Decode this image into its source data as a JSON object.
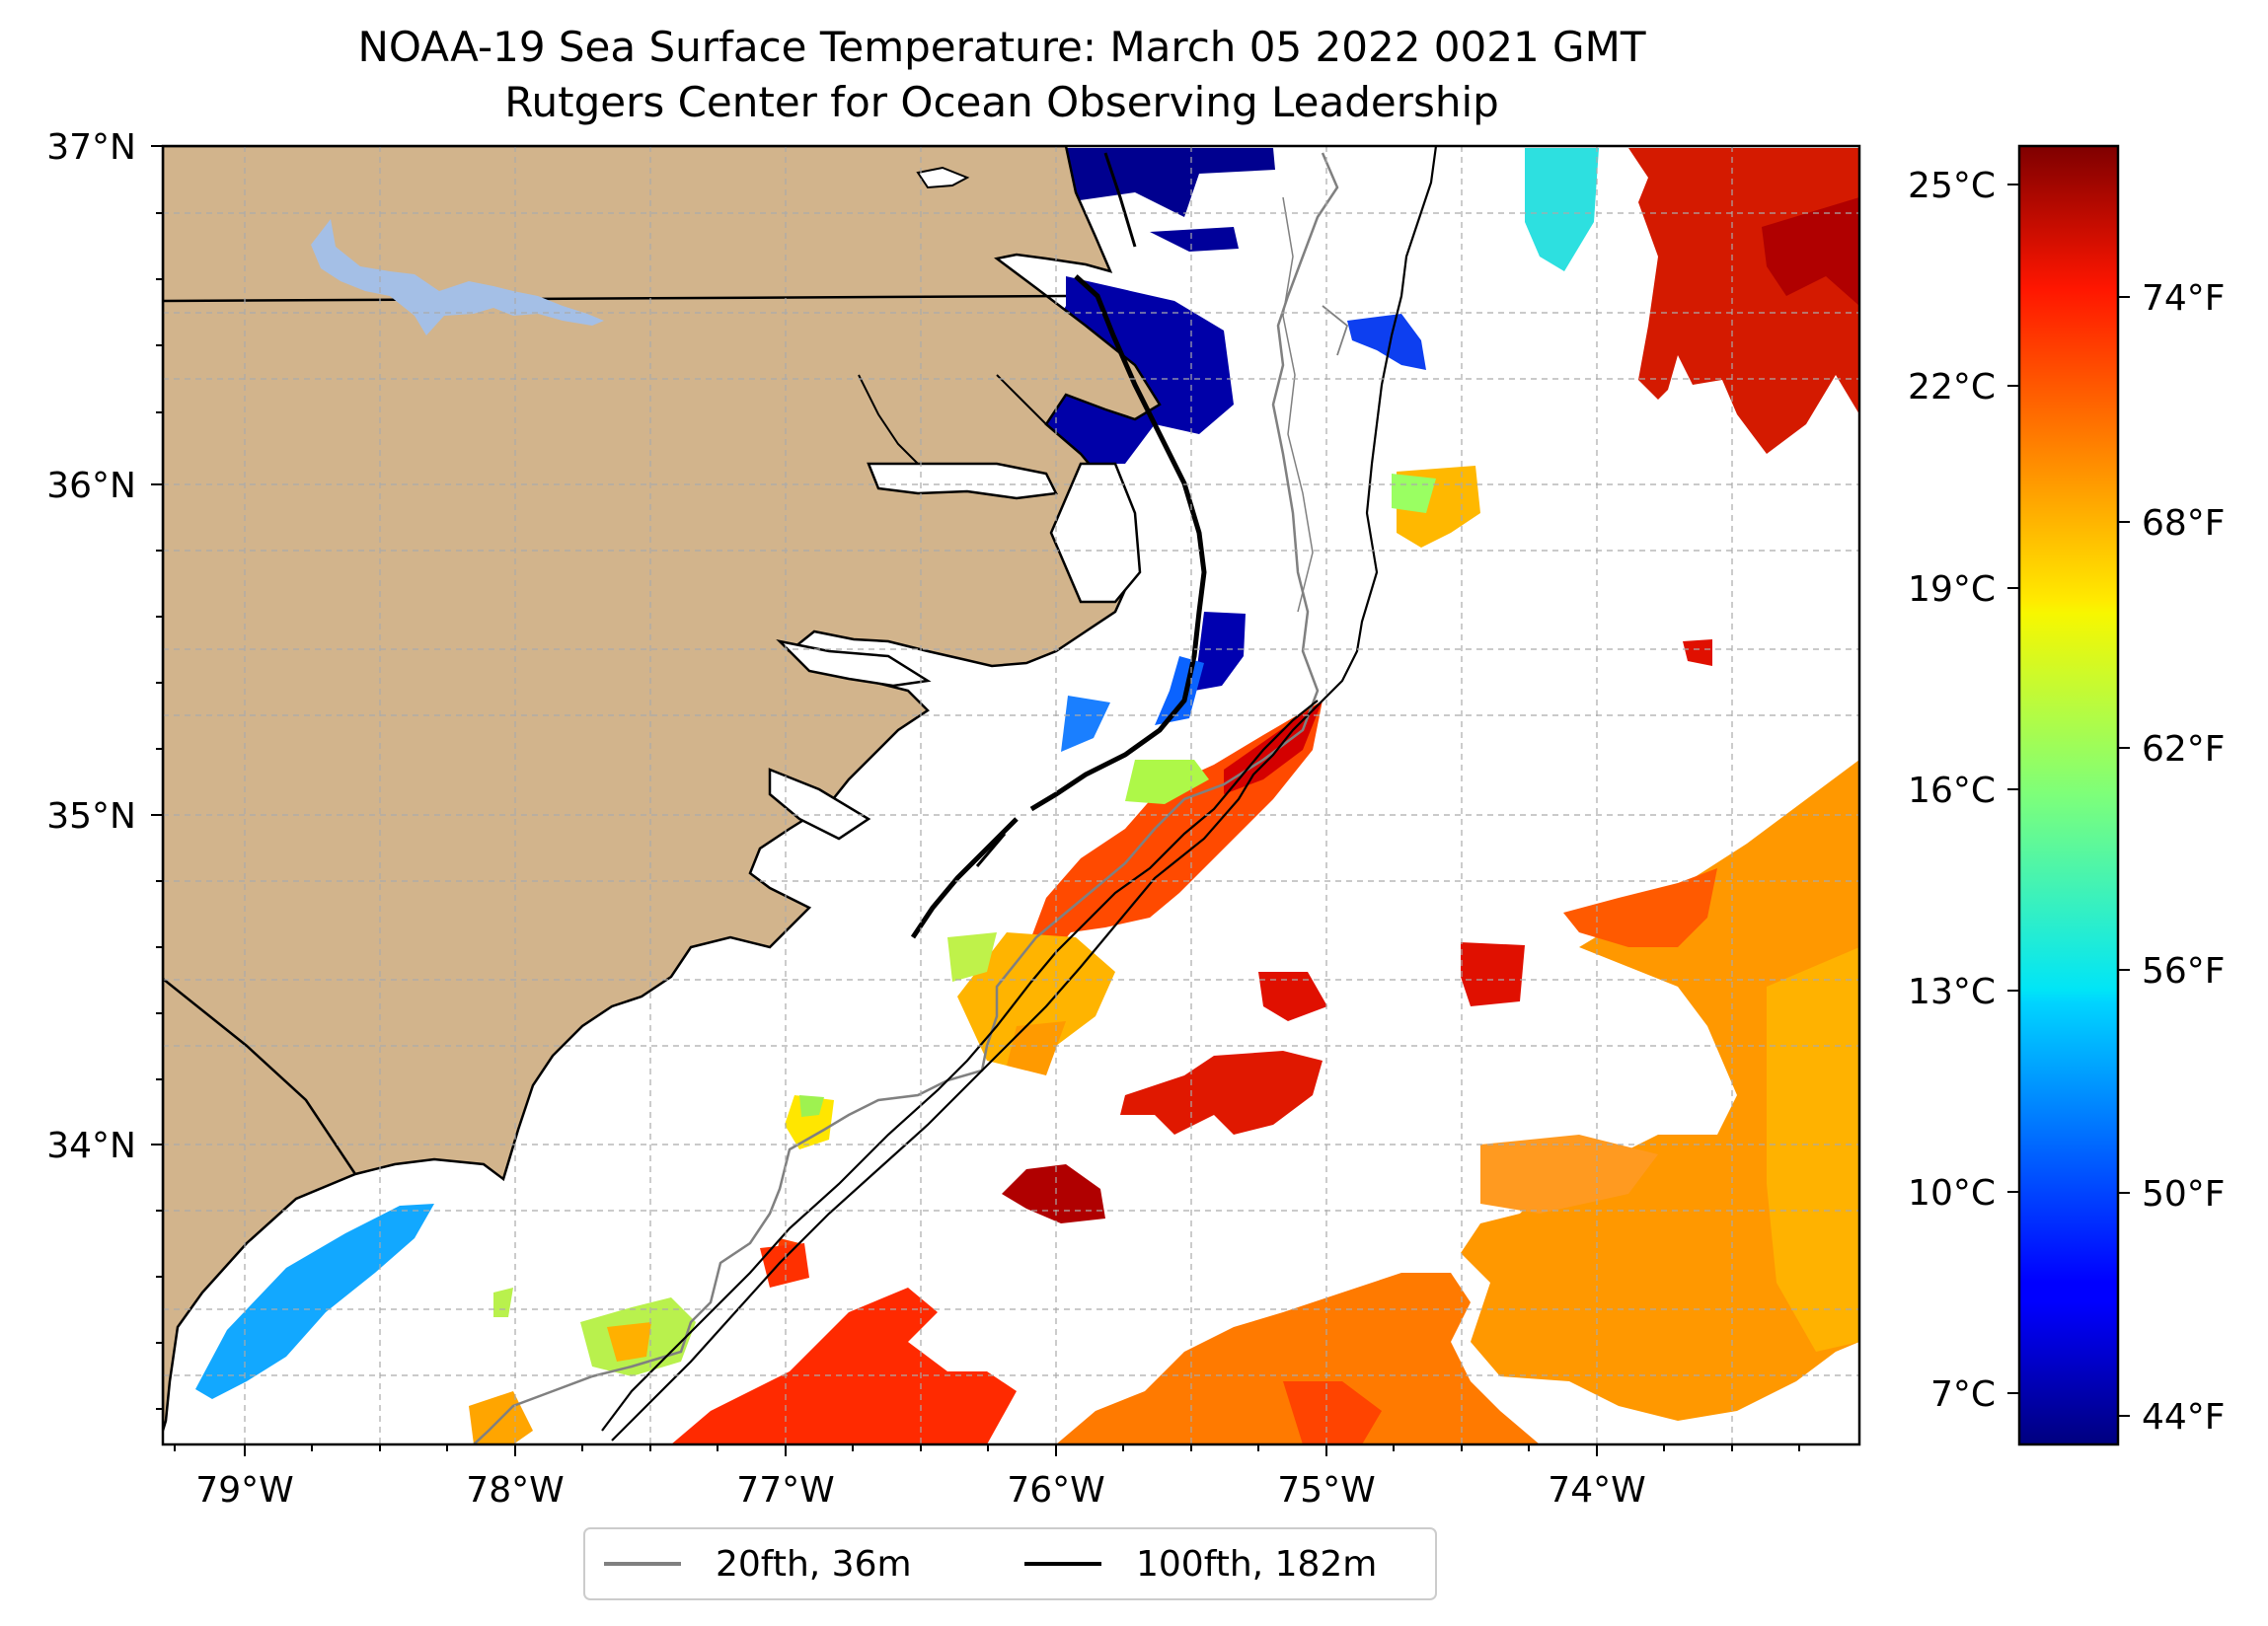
{
  "title": {
    "line1": "NOAA-19 Sea Surface Temperature: March 05 2022 0021 GMT",
    "line2": "Rutgers Center for Ocean Observing Leadership"
  },
  "map": {
    "lat_labels": [
      "37°N",
      "36°N",
      "35°N",
      "34°N"
    ],
    "lon_labels": [
      "79°W",
      "78°W",
      "77°W",
      "76°W",
      "75°W",
      "74°W"
    ],
    "extent": {
      "lon_min": -79.3,
      "lon_max": -73.05,
      "lat_min": 33.1,
      "lat_max": 37.0
    },
    "land_color": "#d2b48c",
    "water_color": "#a4bfe6",
    "grid": true
  },
  "colorbar": {
    "celsius_labels": [
      "25°C",
      "22°C",
      "19°C",
      "16°C",
      "13°C",
      "10°C",
      "7°C"
    ],
    "fahrenheit_labels": [
      "74°F",
      "68°F",
      "62°F",
      "56°F",
      "50°F",
      "44°F"
    ],
    "colormap": "jet",
    "range_f": [
      43,
      79
    ]
  },
  "legend": {
    "items": [
      {
        "label": "20fth, 36m",
        "color": "#808080"
      },
      {
        "label": "100fth, 182m",
        "color": "#000000"
      }
    ]
  }
}
